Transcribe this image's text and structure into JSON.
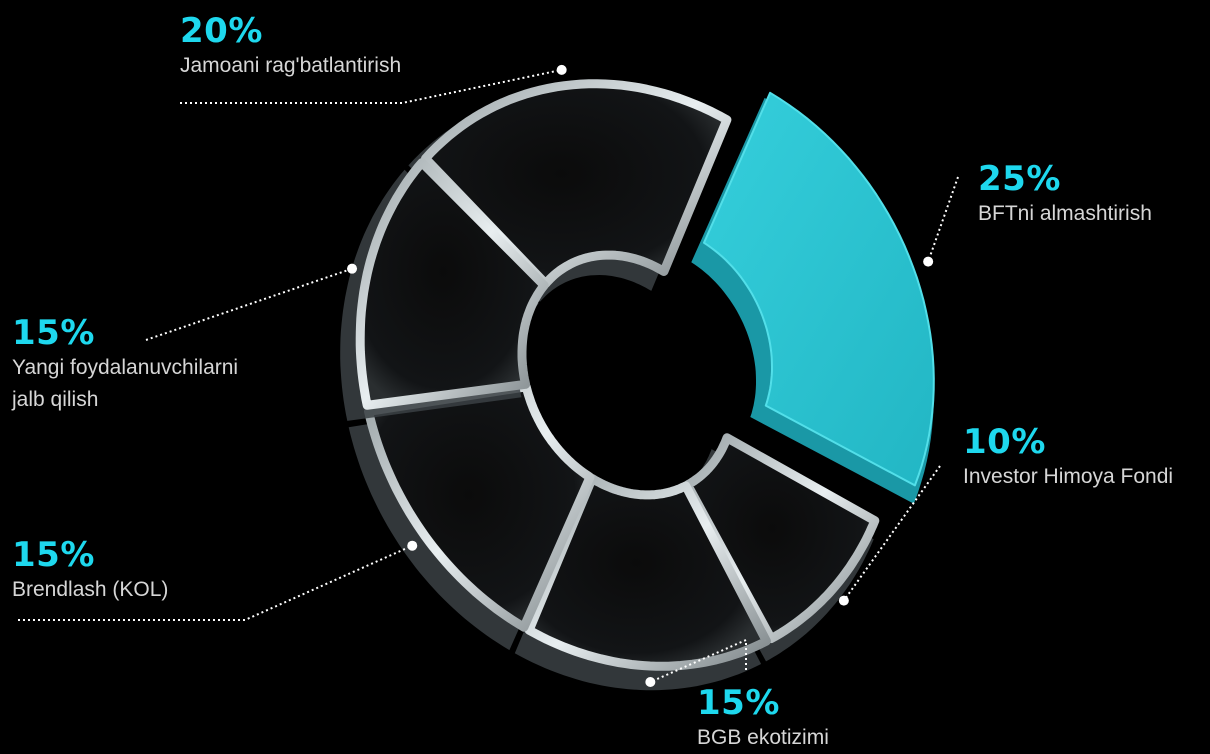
{
  "chart_data": {
    "type": "pie",
    "style": "3d-donut",
    "accent_color": "#2bc3d2",
    "slices": [
      {
        "label": "Jamoani rag'batlantirish",
        "value": 20,
        "value_label": "20%",
        "highlighted": false
      },
      {
        "label": "BFTni almashtirish",
        "value": 25,
        "value_label": "25%",
        "highlighted": true
      },
      {
        "label": "Investor Himoya Fondi",
        "value": 10,
        "value_label": "10%",
        "highlighted": false
      },
      {
        "label": "BGB ekotizimi",
        "value": 15,
        "value_label": "15%",
        "highlighted": false
      },
      {
        "label": "Brendlash (KOL)",
        "value": 15,
        "value_label": "15%",
        "highlighted": false
      },
      {
        "label": "Yangi foydalanuvchilarni jalb qilish",
        "value": 15,
        "value_label": "15%",
        "highlighted": false
      }
    ]
  }
}
